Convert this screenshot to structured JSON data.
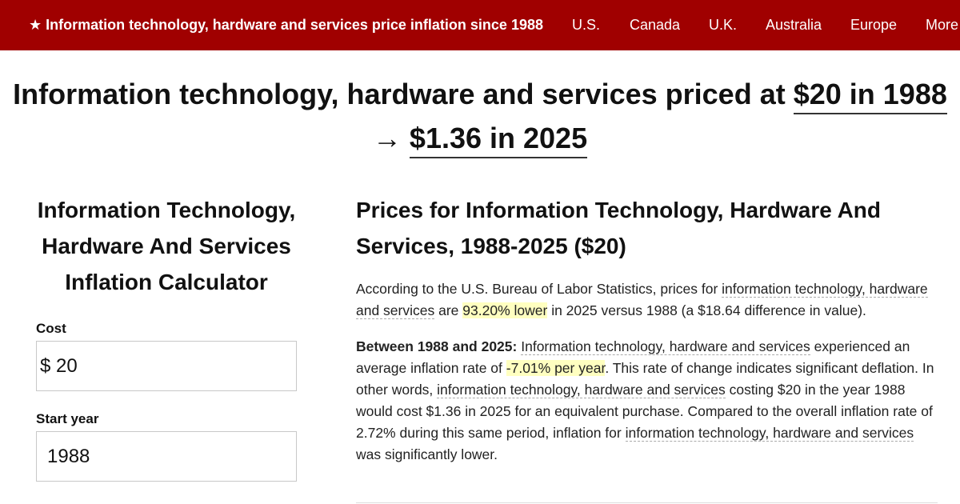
{
  "nav": {
    "brand_label": "★ Information technology, hardware and services price inflation since 1988",
    "links": [
      {
        "label": "U.S."
      },
      {
        "label": "Canada"
      },
      {
        "label": "U.K."
      },
      {
        "label": "Australia"
      },
      {
        "label": "Europe"
      },
      {
        "label": "More"
      }
    ]
  },
  "headline": {
    "prefix": "Information technology, hardware and services priced at ",
    "start_value": "$20 in 1988",
    "arrow": "→ ",
    "end_value": "$1.36 in 2025"
  },
  "calculator": {
    "title": "Information Technology, Hardware And Services Inflation Calculator",
    "cost_label": "Cost",
    "currency_symbol": "$",
    "cost_value": "20",
    "start_year_label": "Start year",
    "start_year_value": "1988"
  },
  "prices": {
    "title": "Prices for Information Technology, Hardware And Services, 1988-2025 ($20)",
    "p1": {
      "t1": "According to the U.S. Bureau of Labor Statistics, prices for ",
      "link1": "information technology, hardware and services",
      "t2": " are ",
      "highlight": "93.20% lower",
      "t3": " in 2025 versus 1988 (a $18.64 difference in value)."
    },
    "p2": {
      "lead": "Between 1988 and 2025:",
      "t0": " ",
      "link1": "Information technology, hardware and services",
      "t1": " experienced an average inflation rate of ",
      "highlight": "-7.01% per year",
      "t2": ". This rate of change indicates significant deflation. In other words, ",
      "link2": "information technology, hardware and services",
      "t3": " costing $20 in the year 1988 would cost $1.36 in 2025 for an equivalent purchase. Compared to the overall inflation rate of 2.72% during this same period, inflation for ",
      "link3": "information technology, hardware and services",
      "t4": " was significantly lower."
    }
  }
}
